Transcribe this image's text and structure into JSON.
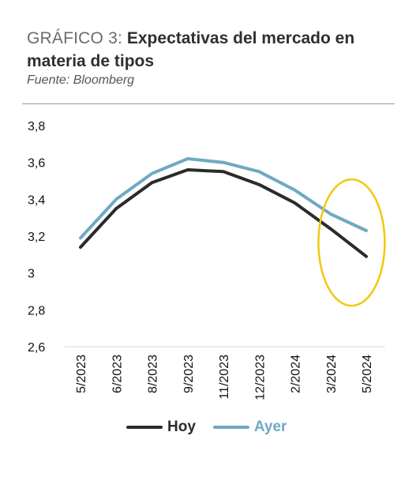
{
  "header": {
    "title_prefix": "GRÁFICO 3:",
    "title_main": "Expectativas del mercado en materia de tipos",
    "source": "Fuente: Bloomberg"
  },
  "chart_data": {
    "type": "line",
    "categories": [
      "5/2023",
      "6/2023",
      "8/2023",
      "9/2023",
      "11/2023",
      "12/2023",
      "2/2024",
      "3/2024",
      "5/2024"
    ],
    "y_ticks": [
      "3,8",
      "3,6",
      "3,4",
      "3,2",
      "3",
      "2,8",
      "2,6"
    ],
    "y_tick_values": [
      3.8,
      3.6,
      3.4,
      3.2,
      3.0,
      2.8,
      2.6
    ],
    "ylim": [
      2.6,
      3.8
    ],
    "grid": false,
    "legend_position": "bottom",
    "annotation": "yellow ellipse highlighting 3/2024–5/2024",
    "annotation_color": "#f2c80f",
    "series": [
      {
        "name": "Hoy",
        "color": "#2b2b2b",
        "values": [
          3.14,
          3.35,
          3.49,
          3.56,
          3.55,
          3.48,
          3.38,
          3.24,
          3.09
        ]
      },
      {
        "name": "Ayer",
        "color": "#6fa9c2",
        "values": [
          3.19,
          3.4,
          3.54,
          3.62,
          3.6,
          3.55,
          3.45,
          3.32,
          3.23
        ]
      }
    ]
  }
}
